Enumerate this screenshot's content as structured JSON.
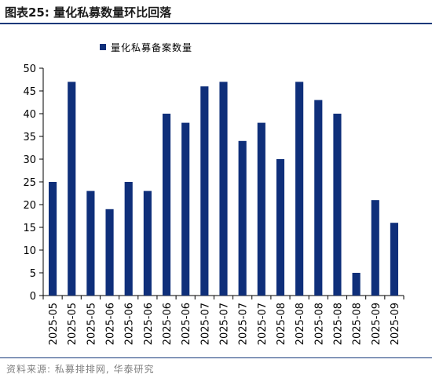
{
  "figure": {
    "title": "图表25:  量化私募数量环比回落",
    "source": "资料来源: 私募排排网, 华泰研究"
  },
  "colors": {
    "bar": "#0f2f7a",
    "rule": "#16387a",
    "axis": "#000000"
  },
  "chart_data": {
    "type": "bar",
    "title": "",
    "xlabel": "",
    "ylabel": "",
    "ylim": [
      0,
      50
    ],
    "yticks": [
      0,
      5,
      10,
      15,
      20,
      25,
      30,
      35,
      40,
      45,
      50
    ],
    "grid": false,
    "legend_position": "top-left",
    "categories": [
      "2025-05",
      "2025-05",
      "2025-05",
      "2025-06",
      "2025-06",
      "2025-06",
      "2025-06",
      "2025-06",
      "2025-07",
      "2025-07",
      "2025-07",
      "2025-07",
      "2025-08",
      "2025-08",
      "2025-08",
      "2025-08",
      "2025-08",
      "2025-09",
      "2025-09"
    ],
    "series": [
      {
        "name": "量化私募备案数量",
        "values": [
          25,
          47,
          23,
          19,
          25,
          23,
          40,
          38,
          46,
          47,
          34,
          38,
          30,
          47,
          43,
          40,
          5,
          21,
          16
        ]
      }
    ]
  }
}
